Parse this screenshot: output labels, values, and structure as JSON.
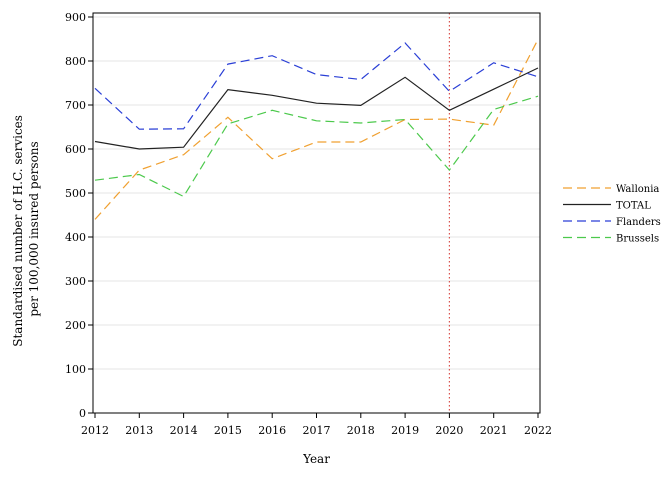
{
  "chart_data": {
    "type": "line",
    "x": [
      2012,
      2013,
      2014,
      2015,
      2016,
      2017,
      2018,
      2019,
      2020,
      2021,
      2022
    ],
    "xlabel": "Year",
    "ylabel_lines": [
      "Standardised number of H.C. services",
      "per 100,000 insured persons"
    ],
    "ylim": [
      0,
      900
    ],
    "yticks": [
      0,
      100,
      200,
      300,
      400,
      500,
      600,
      700,
      800,
      900
    ],
    "grid": "horizontal",
    "legend_position": "right",
    "reference_line": {
      "x": 2020,
      "color": "#d9534f",
      "style": "dotted"
    },
    "series": [
      {
        "name": "Wallonia",
        "color": "#f0a030",
        "dash": "dashed",
        "values": [
          440,
          552,
          587,
          672,
          578,
          616,
          616,
          667,
          668,
          654,
          849
        ]
      },
      {
        "name": "TOTAL",
        "color": "#222222",
        "dash": "solid",
        "values": [
          617,
          600,
          604,
          735,
          722,
          704,
          699,
          763,
          688,
          736,
          784
        ]
      },
      {
        "name": "Flanders",
        "color": "#2a3fd6",
        "dash": "dashed",
        "values": [
          738,
          645,
          646,
          793,
          812,
          769,
          758,
          841,
          731,
          796,
          764
        ]
      },
      {
        "name": "Brussels",
        "color": "#4cc94c",
        "dash": "dashed",
        "values": [
          529,
          542,
          492,
          657,
          688,
          664,
          659,
          667,
          552,
          690,
          720
        ]
      }
    ]
  }
}
